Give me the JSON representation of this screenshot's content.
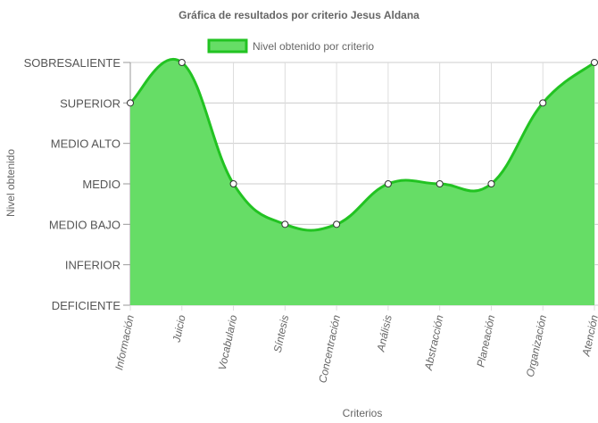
{
  "chart_data": {
    "type": "area",
    "title": "Gráfica de resultados por criterio Jesus Aldana",
    "xlabel": "Criterios",
    "ylabel": "Nivel obtenido",
    "levels": [
      "DEFICIENTE",
      "INFERIOR",
      "MEDIO BAJO",
      "MEDIO",
      "MEDIO ALTO",
      "SUPERIOR",
      "SOBRESALIENTE"
    ],
    "categories": [
      "Información",
      "Juicio",
      "Vocabulario",
      "Síntesis",
      "Concentración",
      "Análisis",
      "Abstracción",
      "Planeación",
      "Organización",
      "Atención"
    ],
    "series": [
      {
        "name": "Nivel obtenido por criterio",
        "values": [
          "SUPERIOR",
          "SOBRESALIENTE",
          "MEDIO",
          "MEDIO BAJO",
          "MEDIO BAJO",
          "MEDIO",
          "MEDIO",
          "MEDIO",
          "SUPERIOR",
          "SOBRESALIENTE"
        ],
        "fill_color": "#66dd66",
        "line_color": "#22c322"
      }
    ],
    "legend_position": "top",
    "grid": true
  }
}
